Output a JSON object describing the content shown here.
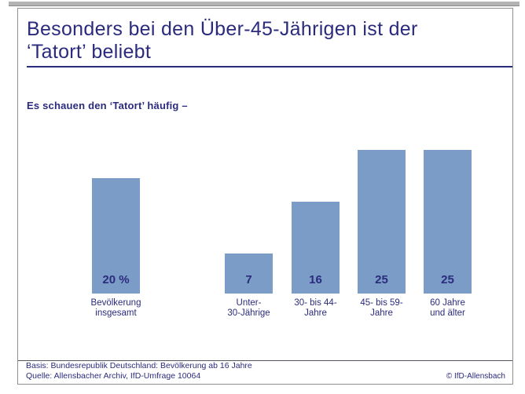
{
  "header": {
    "title_line1": "Besonders bei den Über-45-Jährigen ist der",
    "title_line2": "‘Tatort’ beliebt",
    "subtitle": "Es schauen den ‘Tatort’ häufig –"
  },
  "footer": {
    "basis": "Basis: Bundesrepublik Deutschland: Bevölkerung ab 16 Jahre",
    "quelle": "Quelle: Allensbacher Archiv, IfD-Umfrage 10064",
    "copyright": "© IfD-Allensbach"
  },
  "colors": {
    "navy": "#2b2b7e",
    "bar_blue": "#7b9cc7",
    "frame_border": "#8f8f8f"
  },
  "chart_data": {
    "type": "bar",
    "title": "Besonders bei den Über-45-Jährigen ist der ‘Tatort’ beliebt",
    "subtitle": "Es schauen den ‘Tatort’ häufig –",
    "unit": "percent of population",
    "categories": [
      "Bevölkerung insgesamt",
      "Unter-30-Jährige",
      "30- bis 44-Jahre",
      "45- bis 59-Jahre",
      "60 Jahre und älter"
    ],
    "category_lines": [
      [
        "Bevölkerung",
        "insgesamt"
      ],
      [
        "Unter-",
        "30-Jährige"
      ],
      [
        "30- bis 44-",
        "Jahre"
      ],
      [
        "45- bis 59-",
        "Jahre"
      ],
      [
        "60 Jahre",
        "und älter"
      ]
    ],
    "values": [
      20,
      7,
      16,
      25,
      25
    ],
    "value_labels": [
      "20 %",
      "7",
      "16",
      "25",
      "25"
    ],
    "ylim": [
      0,
      27
    ],
    "grid": false,
    "legend": false,
    "axes_shown": false,
    "value_label_position": "inside-bottom"
  }
}
